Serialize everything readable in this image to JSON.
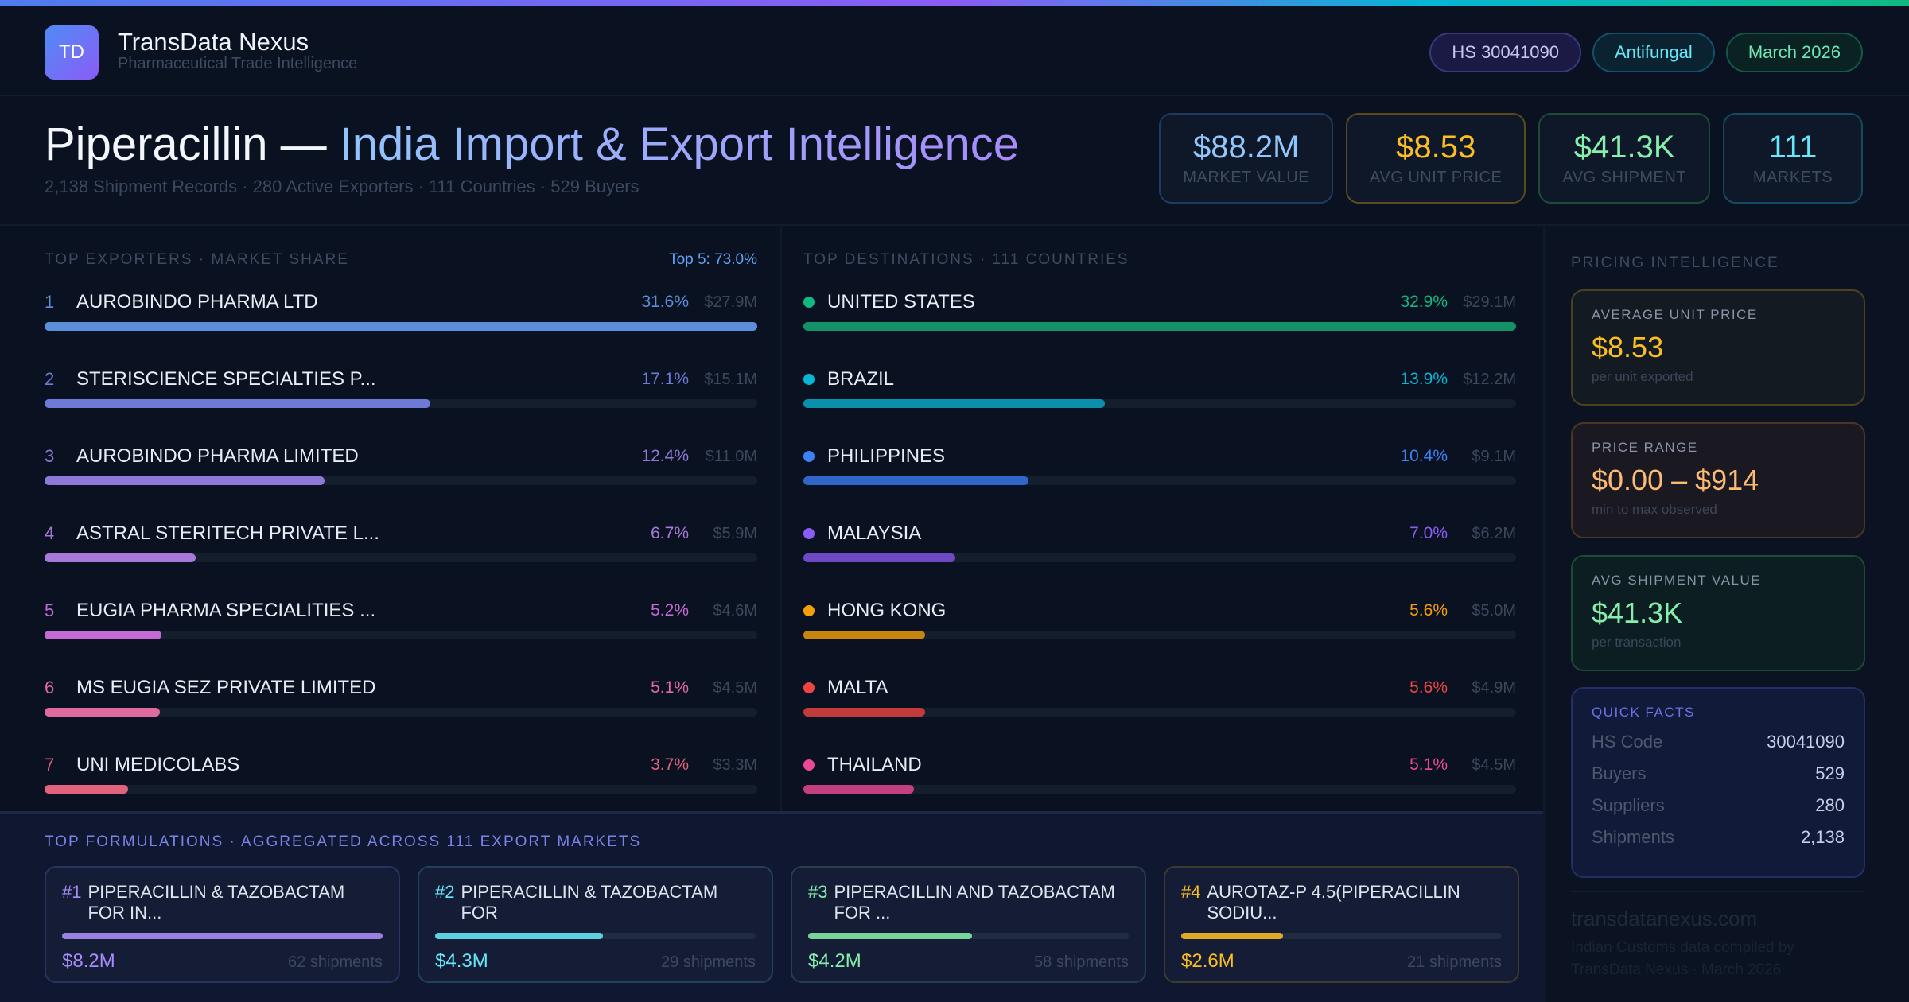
{
  "brand": {
    "logo": "TD",
    "name": "TransData Nexus",
    "tagline": "Pharmaceutical Trade Intelligence"
  },
  "pills": [
    {
      "label": "HS 30041090",
      "color": "#c4c8f5",
      "border": "#3a3780",
      "bg": "#1b1a44"
    },
    {
      "label": "Antifungal",
      "color": "#67e8f9",
      "border": "#14506a",
      "bg": "#0b2230"
    },
    {
      "label": "March 2026",
      "color": "#6ee7b7",
      "border": "#145846",
      "bg": "#0b2222"
    }
  ],
  "hero": {
    "title_main": "Piperacillin — ",
    "title_accent": "India Import & Export Intelligence",
    "subtitle": "2,138 Shipment Records · 280 Active Exporters · 111 Countries · 529 Buyers"
  },
  "kpis": [
    {
      "value": "$88.2M",
      "label": "MARKET VALUE",
      "color": "#93c5fd",
      "border": "#1f3a63"
    },
    {
      "value": "$8.53",
      "label": "AVG UNIT PRICE",
      "color": "#fbbf24",
      "border": "#5c4a1e"
    },
    {
      "value": "$41.3K",
      "label": "AVG SHIPMENT",
      "color": "#86efac",
      "border": "#1b4d36"
    },
    {
      "value": "111",
      "label": "MARKETS",
      "color": "#67e8f9",
      "border": "#164a5e"
    }
  ],
  "exporters": {
    "title": "TOP EXPORTERS · MARKET SHARE",
    "badge": "Top 5: 73.0%",
    "items": [
      {
        "rank": "1",
        "name": "AUROBINDO PHARMA LTD",
        "pct": 31.6,
        "pct_label": "31.6%",
        "value": "$27.9M",
        "color": "#5b8fd9"
      },
      {
        "rank": "2",
        "name": "STERISCIENCE SPECIALTIES P...",
        "pct": 17.1,
        "pct_label": "17.1%",
        "value": "$15.1M",
        "color": "#6d7bd6"
      },
      {
        "rank": "3",
        "name": "AUROBINDO PHARMA LIMITED",
        "pct": 12.4,
        "pct_label": "12.4%",
        "value": "$11.0M",
        "color": "#8f79d8"
      },
      {
        "rank": "4",
        "name": "ASTRAL STERITECH PRIVATE L...",
        "pct": 6.7,
        "pct_label": "6.7%",
        "value": "$5.9M",
        "color": "#a878d8"
      },
      {
        "rank": "5",
        "name": "EUGIA PHARMA SPECIALITIES ...",
        "pct": 5.2,
        "pct_label": "5.2%",
        "value": "$4.6M",
        "color": "#c46ad4"
      },
      {
        "rank": "6",
        "name": "MS EUGIA SEZ PRIVATE LIMITED",
        "pct": 5.1,
        "pct_label": "5.1%",
        "value": "$4.5M",
        "color": "#de6a9e"
      },
      {
        "rank": "7",
        "name": "UNI MEDICOLABS",
        "pct": 3.7,
        "pct_label": "3.7%",
        "value": "$3.3M",
        "color": "#e0627c"
      }
    ]
  },
  "destinations": {
    "title": "TOP DESTINATIONS · 111 COUNTRIES",
    "items": [
      {
        "name": "UNITED STATES",
        "pct": 32.9,
        "pct_label": "32.9%",
        "value": "$29.1M",
        "color": "#10b981",
        "bar": "#139268"
      },
      {
        "name": "BRAZIL",
        "pct": 13.9,
        "pct_label": "13.9%",
        "value": "$12.2M",
        "color": "#06b6d4",
        "bar": "#0a90ad"
      },
      {
        "name": "PHILIPPINES",
        "pct": 10.4,
        "pct_label": "10.4%",
        "value": "$9.1M",
        "color": "#3b82f6",
        "bar": "#2f66c8"
      },
      {
        "name": "MALAYSIA",
        "pct": 7.0,
        "pct_label": "7.0%",
        "value": "$6.2M",
        "color": "#8b5cf6",
        "bar": "#6d4ac4"
      },
      {
        "name": "HONG KONG",
        "pct": 5.6,
        "pct_label": "5.6%",
        "value": "$5.0M",
        "color": "#f59e0b",
        "bar": "#c7850e"
      },
      {
        "name": "MALTA",
        "pct": 5.6,
        "pct_label": "5.6%",
        "value": "$4.9M",
        "color": "#ef4444",
        "bar": "#c23a3a"
      },
      {
        "name": "THAILAND",
        "pct": 5.1,
        "pct_label": "5.1%",
        "value": "$4.5M",
        "color": "#ec4899",
        "bar": "#c23f80"
      }
    ]
  },
  "formulations": {
    "title": "TOP FORMULATIONS · AGGREGATED ACROSS 111 EXPORT MARKETS",
    "items": [
      {
        "rank": "#1",
        "name": "PIPERACILLIN & TAZOBACTAM FOR IN...",
        "value": "$8.2M",
        "amount": 8.2,
        "shipments": "62 shipments",
        "color": "#a78bfa",
        "bar": "#9a80e0",
        "border": "#2a3360"
      },
      {
        "rank": "#2",
        "name": "PIPERACILLIN & TAZOBACTAM FOR",
        "value": "$4.3M",
        "amount": 4.3,
        "shipments": "29 shipments",
        "color": "#67e8f9",
        "bar": "#5ccfe0",
        "border": "#22405a"
      },
      {
        "rank": "#3",
        "name": "PIPERACILLIN AND TAZOBACTAM FOR ...",
        "value": "$4.2M",
        "amount": 4.2,
        "shipments": "58 shipments",
        "color": "#86efac",
        "bar": "#78d49a",
        "border": "#24404a"
      },
      {
        "rank": "#4",
        "name": "AUROTAZ-P 4.5(PIPERACILLIN SODIU...",
        "value": "$2.6M",
        "amount": 2.6,
        "shipments": "21 shipments",
        "color": "#fbbf24",
        "bar": "#dcaa28",
        "border": "#3d3a30"
      }
    ]
  },
  "pricing": {
    "title": "PRICING INTELLIGENCE",
    "avg": {
      "label": "AVERAGE UNIT PRICE",
      "value": "$8.53",
      "note": "per unit exported"
    },
    "range": {
      "label": "PRICE RANGE",
      "value": "$0.00 – $914",
      "note": "min to max observed"
    },
    "ship": {
      "label": "AVG SHIPMENT VALUE",
      "value": "$41.3K",
      "note": "per transaction"
    },
    "quick": {
      "title": "QUICK FACTS",
      "rows": [
        {
          "k": "HS Code",
          "v": "30041090"
        },
        {
          "k": "Buyers",
          "v": "529"
        },
        {
          "k": "Suppliers",
          "v": "280"
        },
        {
          "k": "Shipments",
          "v": "2,138"
        }
      ]
    }
  },
  "footer": {
    "site": "transdatanexus.com",
    "note": "Indian Customs data compiled by TransData Nexus · March 2026"
  }
}
